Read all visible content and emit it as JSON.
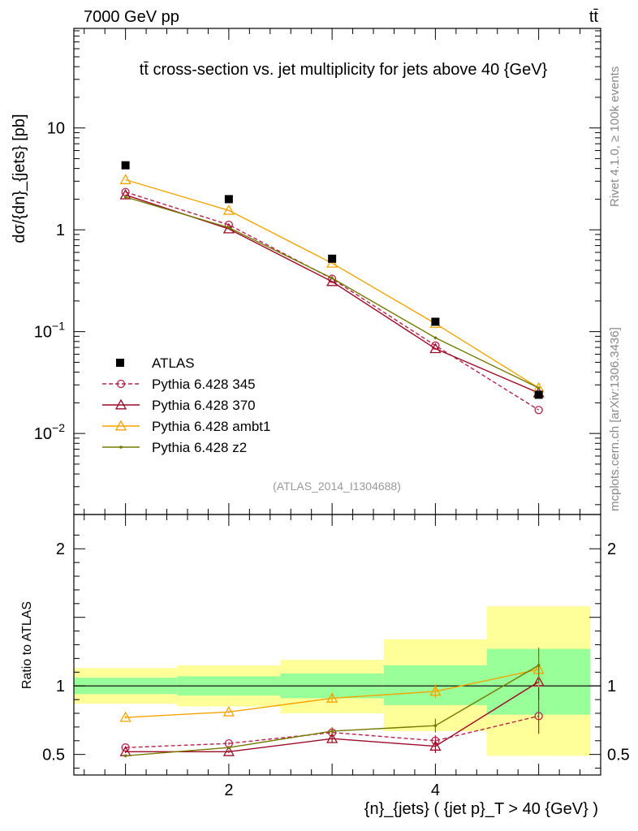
{
  "header": {
    "energy_label": "7000 GeV pp",
    "process_label": "tt̄"
  },
  "side_labels": {
    "rivet": "Rivet 4.1.0, ≥ 100k events",
    "mcplots": "mcplots.cern.ch [arXiv:1306.3436]"
  },
  "chart_data": {
    "type": "line",
    "title": "tt̄ cross-section vs. jet multiplicity for jets above 40 {GeV}",
    "analysis_tag": "(ATLAS_2014_I1304688)",
    "xlabel": "{n}_{jets} ( {jet p}_T > 40 {GeV} )",
    "ylabel": "dσ/{dn}_{jets} [pb]",
    "ratio_ylabel": "Ratio to ATLAS",
    "xlim": [
      0.5,
      5.6
    ],
    "ylim": [
      0.0016,
      95
    ],
    "ratio_ylim": [
      0.35,
      2.25
    ],
    "x_ticks": [
      2,
      4
    ],
    "y_ticks": [
      {
        "value": 10,
        "label": "10"
      },
      {
        "value": 1,
        "label": "1"
      },
      {
        "value": 0.1,
        "label": "10",
        "exp": "−1"
      },
      {
        "value": 0.01,
        "label": "10",
        "exp": "−2"
      }
    ],
    "ratio_ticks": [
      {
        "value": 0.5,
        "label": "0.5"
      },
      {
        "value": 1,
        "label": "1"
      },
      {
        "value": 2,
        "label": "2"
      }
    ],
    "legend_position": "bottom-left",
    "x": [
      1,
      2,
      3,
      4,
      5
    ],
    "data": {
      "name": "ATLAS",
      "values": [
        4.3,
        2.0,
        0.52,
        0.125,
        0.024
      ]
    },
    "series": [
      {
        "name": "Pythia 6.428 345",
        "color": "#b5234a",
        "style": "dashed",
        "marker": "circle",
        "values": [
          2.35,
          1.12,
          0.33,
          0.073,
          0.017
        ],
        "ratio": [
          0.55,
          0.58,
          0.66,
          0.6,
          0.78
        ],
        "ratio_err": [
          0.01,
          0.01,
          0.03,
          0.04,
          0.13
        ]
      },
      {
        "name": "Pythia 6.428 370",
        "color": "#9c0a26",
        "style": "solid",
        "marker": "triangle",
        "values": [
          2.2,
          1.02,
          0.31,
          0.068,
          0.025
        ],
        "ratio": [
          0.52,
          0.52,
          0.615,
          0.56,
          1.03
        ],
        "ratio_err": [
          0.01,
          0.01,
          0.03,
          0.05,
          0.13
        ]
      },
      {
        "name": "Pythia 6.428 ambt1",
        "color": "#f5a300",
        "style": "solid",
        "marker": "triangle",
        "values": [
          3.1,
          1.55,
          0.47,
          0.12,
          0.028
        ],
        "ratio": [
          0.77,
          0.81,
          0.91,
          0.96,
          1.12
        ],
        "ratio_err": [
          0.01,
          0.01,
          0.03,
          0.05,
          0.13
        ]
      },
      {
        "name": "Pythia 6.428 z2",
        "color": "#747a00",
        "style": "solid",
        "marker": "dot",
        "values": [
          2.1,
          1.05,
          0.335,
          0.087,
          0.028
        ],
        "ratio": [
          0.49,
          0.55,
          0.67,
          0.71,
          1.15
        ],
        "ratio_err": [
          0.01,
          0.01,
          0.03,
          0.05,
          0.13
        ]
      }
    ],
    "uncertainty_bands": [
      {
        "x_range": [
          0.5,
          1.5
        ],
        "stat": [
          0.94,
          1.06
        ],
        "total": [
          0.87,
          1.13
        ]
      },
      {
        "x_range": [
          1.5,
          2.5
        ],
        "stat": [
          0.93,
          1.07
        ],
        "total": [
          0.85,
          1.15
        ]
      },
      {
        "x_range": [
          2.5,
          3.5
        ],
        "stat": [
          0.91,
          1.09
        ],
        "total": [
          0.8,
          1.19
        ]
      },
      {
        "x_range": [
          3.5,
          4.5
        ],
        "stat": [
          0.86,
          1.15
        ],
        "total": [
          0.67,
          1.34
        ]
      },
      {
        "x_range": [
          4.5,
          5.5
        ],
        "stat": [
          0.79,
          1.27
        ],
        "total": [
          0.49,
          1.58
        ]
      }
    ]
  }
}
